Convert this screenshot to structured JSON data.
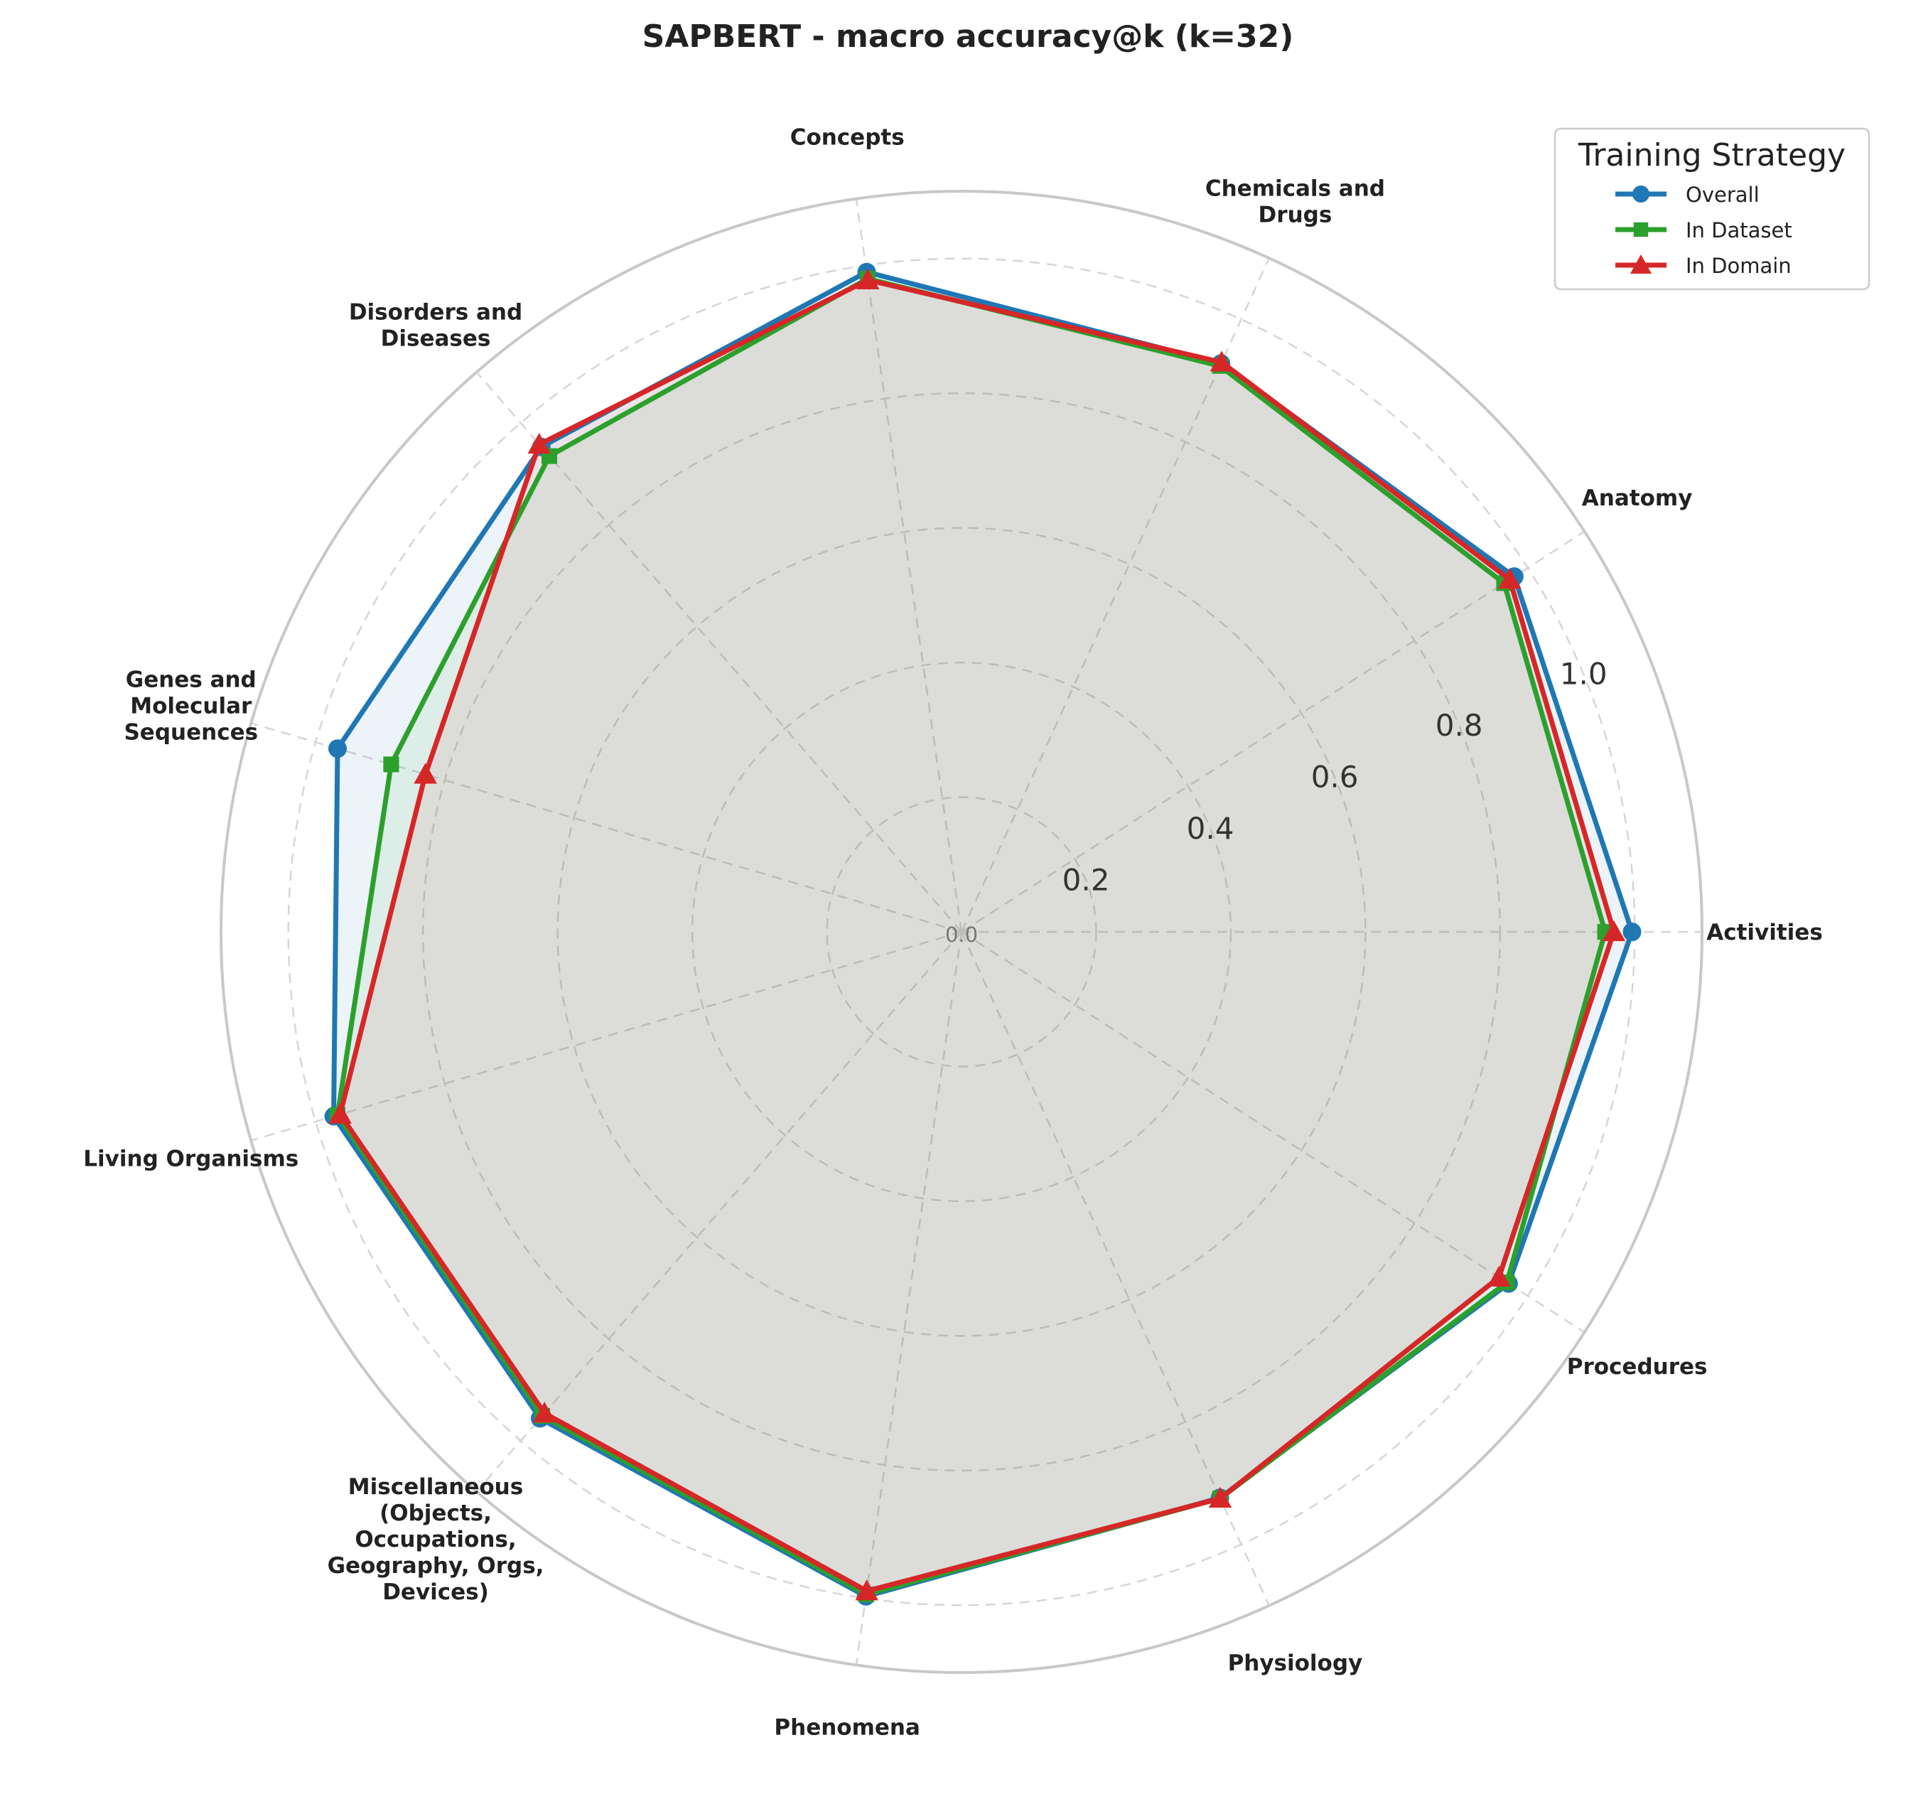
{
  "chart_data": {
    "type": "radar",
    "title": "SAPBERT - macro accuracy@k (k=32)",
    "categories": [
      "Activities",
      "Anatomy",
      "Chemicals and\nDrugs",
      "Concepts",
      "Disorders and\nDiseases",
      "Genes and\nMolecular\nSequences",
      "Living Organisms",
      "Miscellaneous\n(Objects,\nOccupations,\nGeography, Orgs,\nDevices)",
      "Phenomena",
      "Physiology",
      "Procedures"
    ],
    "series": [
      {
        "name": "Overall",
        "color": "#1f77b4",
        "marker": "circle",
        "values": [
          0.996,
          0.976,
          0.928,
          0.99,
          0.953,
          0.966,
          0.972,
          0.956,
          0.997,
          0.924,
          0.966
        ]
      },
      {
        "name": "In Dataset",
        "color": "#2ca02c",
        "marker": "square",
        "values": [
          0.956,
          0.958,
          0.924,
          0.98,
          0.935,
          0.883,
          0.966,
          0.951,
          0.994,
          0.925,
          0.963
        ]
      },
      {
        "name": "In Domain",
        "color": "#d62728",
        "marker": "triangle",
        "values": [
          0.969,
          0.968,
          0.93,
          0.978,
          0.958,
          0.83,
          0.962,
          0.946,
          0.989,
          0.925,
          0.949
        ]
      }
    ],
    "rlim": [
      0,
      1.1
    ],
    "rticks": [
      "0.0",
      "0.2",
      "0.4",
      "0.6",
      "0.8",
      "1.0"
    ],
    "rtick_values": [
      0.0,
      0.2,
      0.4,
      0.6,
      0.8,
      1.0
    ],
    "grid": true,
    "legend": {
      "title": "Training Strategy",
      "placement": "top-right"
    }
  }
}
